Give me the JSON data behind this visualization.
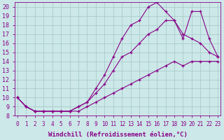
{
  "bg_color": "#cce8e8",
  "grid_color": "#aacccc",
  "line_color": "#880088",
  "marker": "+",
  "xlabel": "Windchill (Refroidissement éolien,°C)",
  "xlabel_fontsize": 6.5,
  "ytick_fontsize": 6,
  "xtick_fontsize": 5.5,
  "ylim": [
    8,
    20.5
  ],
  "xlim": [
    -0.3,
    23.3
  ],
  "yticks": [
    8,
    9,
    10,
    11,
    12,
    13,
    14,
    15,
    16,
    17,
    18,
    19,
    20
  ],
  "xticks": [
    0,
    1,
    2,
    3,
    4,
    5,
    6,
    7,
    8,
    9,
    10,
    11,
    12,
    13,
    14,
    15,
    16,
    17,
    18,
    19,
    20,
    21,
    22,
    23
  ],
  "series": [
    {
      "x": [
        0,
        1,
        2,
        3,
        4,
        5,
        6,
        7,
        8,
        9,
        10,
        11,
        12,
        13,
        14,
        15,
        16,
        17,
        18,
        19,
        20,
        21,
        22,
        23
      ],
      "y": [
        10.0,
        9.0,
        8.5,
        8.5,
        8.5,
        8.5,
        8.5,
        8.5,
        9.0,
        9.5,
        10.0,
        10.5,
        11.0,
        11.5,
        12.0,
        12.5,
        13.0,
        13.5,
        14.0,
        13.5,
        14.0,
        14.0,
        14.0,
        14.0
      ]
    },
    {
      "x": [
        0,
        1,
        2,
        3,
        4,
        5,
        6,
        7,
        8,
        9,
        10,
        11,
        12,
        13,
        14,
        15,
        16,
        17,
        18,
        19,
        20,
        21,
        22,
        23
      ],
      "y": [
        10.0,
        9.0,
        8.5,
        8.5,
        8.5,
        8.5,
        8.5,
        9.0,
        9.5,
        10.5,
        11.5,
        13.0,
        14.5,
        15.0,
        16.0,
        17.0,
        17.5,
        18.5,
        18.5,
        17.0,
        16.5,
        16.0,
        15.0,
        14.5
      ]
    },
    {
      "x": [
        0,
        1,
        2,
        3,
        4,
        5,
        6,
        7,
        8,
        9,
        10,
        11,
        12,
        13,
        14,
        15,
        16,
        17,
        18,
        19,
        20,
        21,
        22,
        23
      ],
      "y": [
        10.0,
        9.0,
        8.5,
        8.5,
        8.5,
        8.5,
        8.5,
        9.0,
        9.5,
        11.0,
        12.5,
        14.5,
        16.5,
        18.0,
        18.5,
        20.0,
        20.5,
        19.5,
        18.5,
        16.5,
        19.5,
        19.5,
        16.5,
        14.5
      ]
    }
  ]
}
